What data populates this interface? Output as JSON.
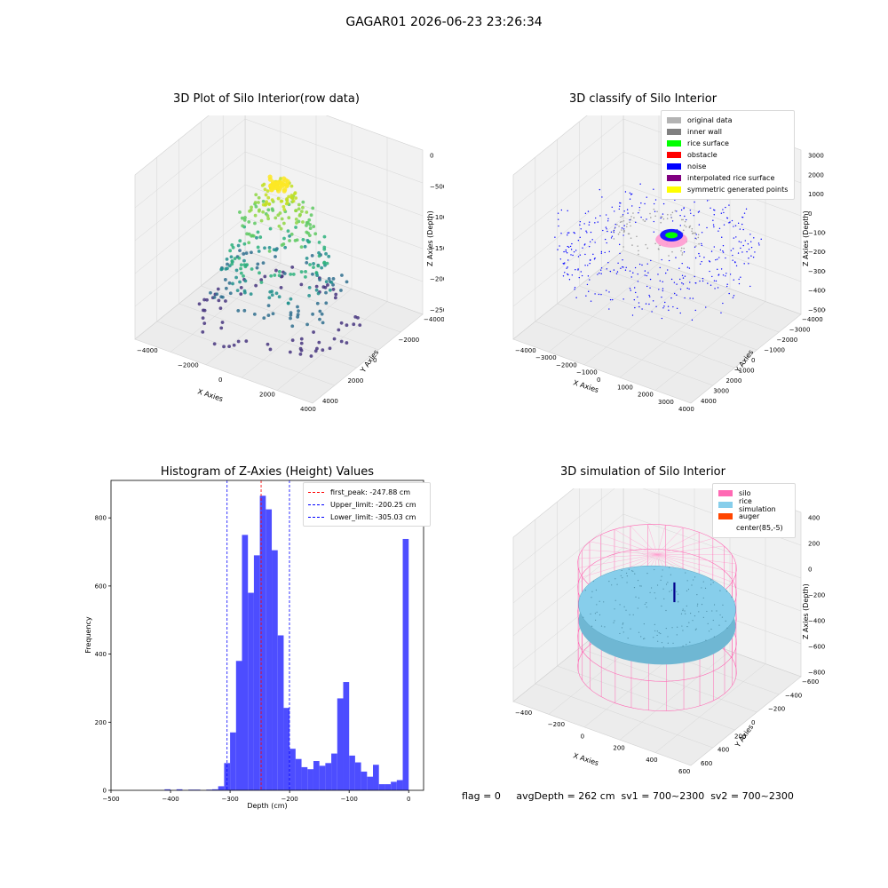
{
  "figure": {
    "suptitle": "GAGAR01 2026-06-23 23:26:34",
    "status_line": "flag = 0     avgDepth = 262 cm  sv1 = 700~2300  sv2 = 700~2300"
  },
  "chart_data": [
    {
      "id": "raw3d",
      "type": "scatter",
      "title": "3D Plot of Silo Interior(row data)",
      "xlabel": "X Axies",
      "ylabel": "Y Axies",
      "zlabel": "Z Axies (Depth)",
      "xticks": [
        "−4000",
        "−2000",
        "0",
        "2000",
        "4000"
      ],
      "yticks": [
        "4000",
        "2000",
        "0",
        "−2000",
        "−4000"
      ],
      "zticks": [
        "0",
        "−500",
        "−1000",
        "−1500",
        "−2000",
        "−2500"
      ],
      "colormap": "viridis",
      "rings": [
        {
          "z": -2600,
          "r": 3500,
          "n": 70,
          "color": "#46357f"
        },
        {
          "z": -2100,
          "r": 3000,
          "n": 60,
          "color": "#2f6f8e"
        },
        {
          "z": -1800,
          "r": 2500,
          "n": 55,
          "color": "#21908d"
        },
        {
          "z": -1500,
          "r": 2200,
          "n": 50,
          "color": "#2db27d"
        },
        {
          "z": -1000,
          "r": 1800,
          "n": 45,
          "color": "#5ec962"
        },
        {
          "z": -700,
          "r": 1300,
          "n": 40,
          "color": "#8fd744"
        },
        {
          "z": -450,
          "r": 800,
          "n": 40,
          "color": "#c2df23"
        },
        {
          "z": -300,
          "r": 400,
          "n": 35,
          "color": "#fde725"
        }
      ]
    },
    {
      "id": "classify3d",
      "type": "scatter",
      "title": "3D classify of Silo Interior",
      "xlabel": "X Axies",
      "ylabel": "Y Axies",
      "zlabel": "Z Axies (Depth)",
      "xticks": [
        "−4000",
        "−3000",
        "−2000",
        "−1000",
        "0",
        "1000",
        "2000",
        "3000",
        "4000"
      ],
      "yticks": [
        "4000",
        "3000",
        "2000",
        "1000",
        "0",
        "−1000",
        "−2000",
        "−3000",
        "−4000"
      ],
      "zticks": [
        "3000",
        "2000",
        "1000",
        "0",
        "−1000",
        "−2000",
        "−3000",
        "−4000",
        "−5000"
      ],
      "legend": [
        {
          "label": "original data",
          "color": "#b3b3b3"
        },
        {
          "label": "inner wall",
          "color": "#808080"
        },
        {
          "label": "rice surface",
          "color": "#00ff00"
        },
        {
          "label": "obstacle",
          "color": "#ff0000"
        },
        {
          "label": "noise",
          "color": "#0000ff"
        },
        {
          "label": "interpolated rice surface",
          "color": "#800080"
        },
        {
          "label": "symmetric generated points",
          "color": "#ffff00"
        }
      ]
    },
    {
      "id": "histogram",
      "type": "bar",
      "title": "Histogram of Z-Axies (Height) Values",
      "xlabel": "Depth (cm)",
      "ylabel": "Frequency",
      "xlim": [
        -500,
        25
      ],
      "ylim": [
        0,
        910
      ],
      "xticks": [
        -500,
        -400,
        -300,
        -200,
        -100,
        0
      ],
      "yticks": [
        0,
        200,
        400,
        600,
        800
      ],
      "bar_color": "#4d4dff",
      "bin_width": 10,
      "bins": [
        {
          "left": -410,
          "value": 3
        },
        {
          "left": -390,
          "value": 3
        },
        {
          "left": -370,
          "value": 2
        },
        {
          "left": -360,
          "value": 2
        },
        {
          "left": -340,
          "value": 2
        },
        {
          "left": -330,
          "value": 3
        },
        {
          "left": -320,
          "value": 12
        },
        {
          "left": -310,
          "value": 80
        },
        {
          "left": -300,
          "value": 170
        },
        {
          "left": -290,
          "value": 380
        },
        {
          "left": -280,
          "value": 750
        },
        {
          "left": -270,
          "value": 580
        },
        {
          "left": -260,
          "value": 690
        },
        {
          "left": -250,
          "value": 865
        },
        {
          "left": -240,
          "value": 825
        },
        {
          "left": -230,
          "value": 705
        },
        {
          "left": -220,
          "value": 455
        },
        {
          "left": -210,
          "value": 242
        },
        {
          "left": -200,
          "value": 122
        },
        {
          "left": -190,
          "value": 92
        },
        {
          "left": -180,
          "value": 68
        },
        {
          "left": -170,
          "value": 62
        },
        {
          "left": -160,
          "value": 86
        },
        {
          "left": -150,
          "value": 72
        },
        {
          "left": -140,
          "value": 80
        },
        {
          "left": -130,
          "value": 108
        },
        {
          "left": -120,
          "value": 270
        },
        {
          "left": -110,
          "value": 318
        },
        {
          "left": -100,
          "value": 102
        },
        {
          "left": -90,
          "value": 82
        },
        {
          "left": -80,
          "value": 55
        },
        {
          "left": -70,
          "value": 40
        },
        {
          "left": -60,
          "value": 75
        },
        {
          "left": -50,
          "value": 18
        },
        {
          "left": -40,
          "value": 18
        },
        {
          "left": -30,
          "value": 25
        },
        {
          "left": -20,
          "value": 30
        },
        {
          "left": -10,
          "value": 738
        }
      ],
      "vlines": [
        {
          "label": "first_peak: -247.88 cm",
          "x": -247.88,
          "color": "#ff0000"
        },
        {
          "label": "Upper_limit: -200.25 cm",
          "x": -200.25,
          "color": "#0000ff"
        },
        {
          "label": "Lower_limit: -305.03 cm",
          "x": -305.03,
          "color": "#0000ff"
        }
      ]
    },
    {
      "id": "simulation3d",
      "type": "scatter",
      "title": "3D simulation of Silo Interior",
      "xlabel": "X Axies",
      "ylabel": "Y Axies",
      "zlabel": "Z Axies (Depth)",
      "xticks": [
        "−400",
        "−200",
        "0",
        "200",
        "400",
        "600"
      ],
      "yticks": [
        "600",
        "400",
        "200",
        "0",
        "−200",
        "−400",
        "−600"
      ],
      "zticks": [
        "400",
        "200",
        "0",
        "−200",
        "−400",
        "−600",
        "−800"
      ],
      "legend": [
        {
          "label": "silo",
          "color": "#ff69b4"
        },
        {
          "label": "rice simulation",
          "color": "#87ceeb"
        },
        {
          "label": "auger",
          "color": "#ff4500"
        },
        {
          "label": "center(85,-5)",
          "color": ""
        }
      ]
    }
  ]
}
